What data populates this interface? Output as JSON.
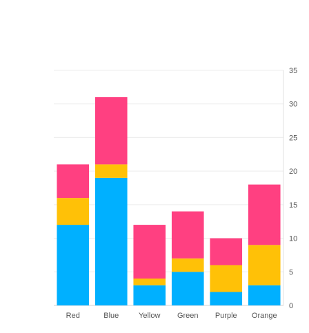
{
  "chart_data": {
    "type": "bar",
    "stacked": true,
    "categories": [
      "Red",
      "Blue",
      "Yellow",
      "Green",
      "Purple",
      "Orange"
    ],
    "series": [
      {
        "values": [
          12,
          19,
          3,
          5,
          2,
          3
        ],
        "color": "#00b0ff"
      },
      {
        "values": [
          4,
          2,
          1,
          2,
          4,
          6
        ],
        "color": "#ffc107"
      },
      {
        "values": [
          5,
          10,
          8,
          7,
          4,
          9
        ],
        "color": "#ff4081"
      }
    ],
    "title": "",
    "xlabel": "",
    "ylabel": "",
    "ylim": [
      0,
      35
    ],
    "yticks": [
      0,
      5,
      10,
      15,
      20,
      25,
      30,
      35
    ],
    "y_axis_side": "right",
    "grid": true,
    "legend": "none"
  }
}
